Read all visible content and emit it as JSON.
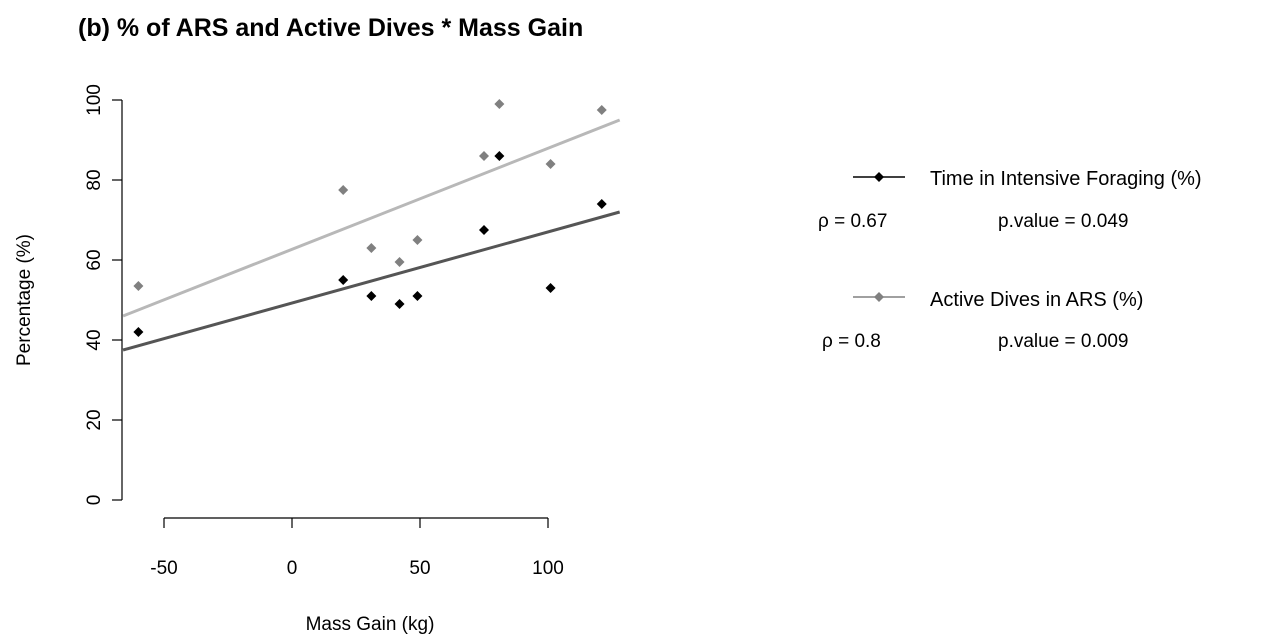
{
  "chart_data": {
    "type": "scatter",
    "title": "(b) % of ARS and Active Dives * Mass Gain",
    "xlabel": "Mass Gain (kg)",
    "ylabel": "Percentage (%)",
    "xlim": [
      -66,
      128
    ],
    "ylim": [
      0,
      100
    ],
    "x_ticks": [
      -50,
      0,
      50,
      100
    ],
    "y_ticks": [
      0,
      20,
      40,
      60,
      80,
      100
    ],
    "x_tick_labels": [
      "-50",
      "0",
      "50",
      "100"
    ],
    "y_tick_labels": [
      "0",
      "20",
      "40",
      "60",
      "80",
      "100"
    ],
    "grid": false,
    "legend_position": "right",
    "series": [
      {
        "name": "Time in Intensive Foraging (%)",
        "color": "#000000",
        "line_color": "#555555",
        "points": [
          {
            "x": -60,
            "y": 42
          },
          {
            "x": 20,
            "y": 55
          },
          {
            "x": 31,
            "y": 51
          },
          {
            "x": 42,
            "y": 49
          },
          {
            "x": 49,
            "y": 51
          },
          {
            "x": 75,
            "y": 67.5
          },
          {
            "x": 81,
            "y": 86
          },
          {
            "x": 101,
            "y": 53
          },
          {
            "x": 121,
            "y": 74
          }
        ],
        "fit": {
          "x": [
            -66,
            128
          ],
          "y": [
            37.5,
            72
          ]
        },
        "rho_label": "ρ = 0.67",
        "pvalue_label": "p.value = 0.049"
      },
      {
        "name": "Active Dives in ARS (%)",
        "color": "#808080",
        "line_color": "#b8b8b8",
        "points": [
          {
            "x": -60,
            "y": 53.5
          },
          {
            "x": 20,
            "y": 77.5
          },
          {
            "x": 31,
            "y": 63
          },
          {
            "x": 42,
            "y": 59.5
          },
          {
            "x": 49,
            "y": 65
          },
          {
            "x": 75,
            "y": 86
          },
          {
            "x": 81,
            "y": 99
          },
          {
            "x": 101,
            "y": 84
          },
          {
            "x": 121,
            "y": 97.5
          }
        ],
        "fit": {
          "x": [
            -66,
            128
          ],
          "y": [
            46,
            95
          ]
        },
        "rho_label": "ρ = 0.8",
        "pvalue_label": "p.value = 0.009"
      }
    ]
  }
}
